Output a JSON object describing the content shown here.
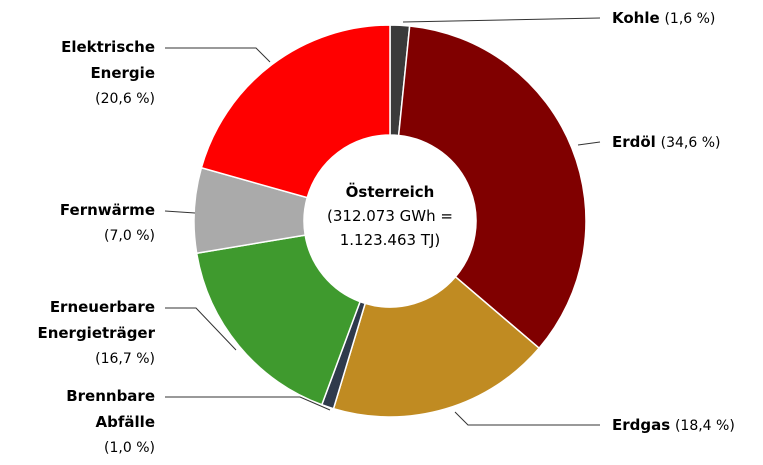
{
  "chart_data": {
    "type": "donut",
    "title": "Österreich",
    "subtitle": "(312.073 GWh = 1.123.463 TJ)",
    "categories": [
      "Kohle",
      "Erdöl",
      "Erdgas",
      "Brennbare Abfälle",
      "Erneuerbare Energieträger",
      "Fernwärme",
      "Elektrische Energie"
    ],
    "values": [
      1.6,
      34.6,
      18.4,
      1.0,
      16.7,
      7.0,
      20.6
    ],
    "value_labels": [
      "(1,6 %)",
      "(34,6 %)",
      "(18,4 %)",
      "(1,0 %)",
      "(16,7 %)",
      "(7,0 %)",
      "(20,6 %)"
    ],
    "colors": [
      "#3a3a3a",
      "#800000",
      "#c08b22",
      "#2f3a4c",
      "#3f9a2e",
      "#aaaaaa",
      "#ff0000"
    ]
  }
}
